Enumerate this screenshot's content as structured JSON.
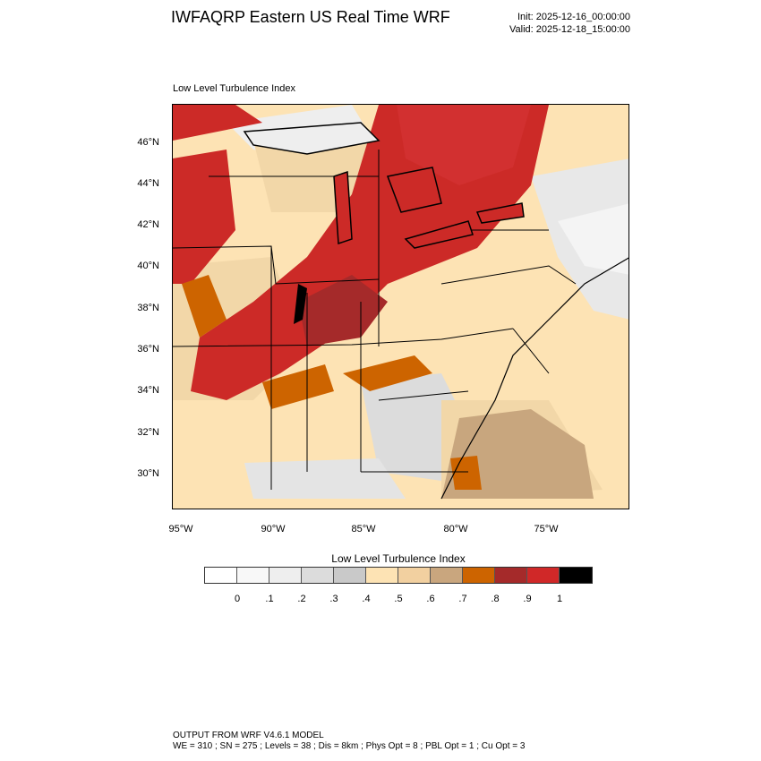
{
  "header": {
    "title": "IWFAQRP Eastern US Real Time WRF",
    "init": "Init: 2025-12-16_00:00:00",
    "valid": "Valid: 2025-12-18_15:00:00"
  },
  "map": {
    "field_label": "Low Level Turbulence Index",
    "region": "Eastern US",
    "lat_ticks": [
      "46°N",
      "44°N",
      "42°N",
      "40°N",
      "38°N",
      "36°N",
      "34°N",
      "32°N",
      "30°N"
    ],
    "lon_ticks": [
      "95°W",
      "90°W",
      "85°W",
      "80°W",
      "75°W"
    ],
    "colors": {
      "very_high": "#cc2a27",
      "high": "#a52a2a",
      "moderate_high": "#cd6400",
      "moderate": "#c8a67e",
      "low_moderate": "#f2d7a8",
      "low": "#fde3b4",
      "light_gray": "#d9d9d9",
      "very_light": "#f0f0f0",
      "max": "#000000"
    }
  },
  "colorbar": {
    "title": "Low Level Turbulence Index",
    "labels": [
      "0",
      ".1",
      ".2",
      ".3",
      ".4",
      ".5",
      ".6",
      ".7",
      ".8",
      ".9",
      "1"
    ],
    "colors": [
      "#ffffff",
      "#f8f8f8",
      "#eeeeee",
      "#dcdcdc",
      "#c9c9c9",
      "#fde3b4",
      "#f2d0a0",
      "#c9a67e",
      "#cd6400",
      "#a52a2a",
      "#d02828",
      "#000000"
    ]
  },
  "footer": {
    "line1": "OUTPUT FROM WRF V4.6.1 MODEL",
    "line2": "WE = 310 ; SN = 275 ; Levels = 38 ; Dis = 8km ; Phys Opt = 8 ; PBL Opt = 1 ; Cu Opt = 3"
  }
}
